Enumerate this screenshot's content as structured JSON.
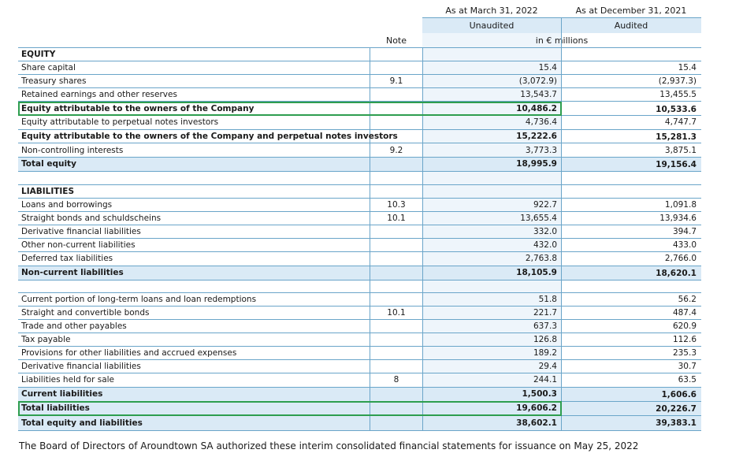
{
  "header": {
    "col1_date": "As at March 31, 2022",
    "col2_date": "As at December 31, 2021",
    "col1_status": "Unaudited",
    "col2_status": "Audited",
    "note_label": "Note",
    "unit": "in € millions"
  },
  "sections": {
    "equity": "EQUITY",
    "liabilities": "LIABILITIES"
  },
  "rows": {
    "share_capital": {
      "label": "Share capital",
      "note": "",
      "v1": "15.4",
      "v2": "15.4"
    },
    "treasury_shares": {
      "label": "Treasury shares",
      "note": "9.1",
      "v1": "(3,072.9)",
      "v2": "(2,937.3)"
    },
    "retained_earnings": {
      "label": "Retained earnings and other reserves",
      "note": "",
      "v1": "13,543.7",
      "v2": "13,455.5"
    },
    "equity_owners": {
      "label": "Equity attributable to the owners of the Company",
      "note": "",
      "v1": "10,486.2",
      "v2": "10,533.6"
    },
    "equity_perpetual": {
      "label": "Equity attributable to perpetual notes investors",
      "note": "",
      "v1": "4,736.4",
      "v2": "4,747.7"
    },
    "equity_owners_perpetual": {
      "label": "Equity attributable to the owners of the Company and perpetual notes investors",
      "note": "",
      "v1": "15,222.6",
      "v2": "15,281.3"
    },
    "non_controlling": {
      "label": "Non-controlling interests",
      "note": "9.2",
      "v1": "3,773.3",
      "v2": "3,875.1"
    },
    "total_equity": {
      "label": "Total equity",
      "note": "",
      "v1": "18,995.9",
      "v2": "19,156.4"
    },
    "loans_borrowings": {
      "label": "Loans and borrowings",
      "note": "10.3",
      "v1": "922.7",
      "v2": "1,091.8"
    },
    "straight_bonds": {
      "label": "Straight bonds and schuldscheins",
      "note": "10.1",
      "v1": "13,655.4",
      "v2": "13,934.6"
    },
    "derivative_nc": {
      "label": "Derivative financial liabilities",
      "note": "",
      "v1": "332.0",
      "v2": "394.7"
    },
    "other_nc": {
      "label": "Other non-current liabilities",
      "note": "",
      "v1": "432.0",
      "v2": "433.0"
    },
    "deferred_tax": {
      "label": "Deferred tax liabilities",
      "note": "",
      "v1": "2,763.8",
      "v2": "2,766.0"
    },
    "non_current_total": {
      "label": "Non-current liabilities",
      "note": "",
      "v1": "18,105.9",
      "v2": "18,620.1"
    },
    "current_portion": {
      "label": "Current portion of long-term loans and loan redemptions",
      "note": "",
      "v1": "51.8",
      "v2": "56.2"
    },
    "straight_convertible": {
      "label": "Straight and convertible bonds",
      "note": "10.1",
      "v1": "221.7",
      "v2": "487.4"
    },
    "trade_payables": {
      "label": "Trade and other payables",
      "note": "",
      "v1": "637.3",
      "v2": "620.9"
    },
    "tax_payable": {
      "label": "Tax payable",
      "note": "",
      "v1": "126.8",
      "v2": "112.6"
    },
    "provisions": {
      "label": "Provisions for other liabilities and accrued expenses",
      "note": "",
      "v1": "189.2",
      "v2": "235.3"
    },
    "derivative_c": {
      "label": "Derivative financial liabilities",
      "note": "",
      "v1": "29.4",
      "v2": "30.7"
    },
    "held_for_sale": {
      "label": "Liabilities held for sale",
      "note": "8",
      "v1": "244.1",
      "v2": "63.5"
    },
    "current_total": {
      "label": "Current liabilities",
      "note": "",
      "v1": "1,500.3",
      "v2": "1,606.6"
    },
    "total_liabilities": {
      "label": "Total liabilities",
      "note": "",
      "v1": "19,606.2",
      "v2": "20,226.7"
    },
    "total_equity_liabilities": {
      "label": "Total equity and liabilities",
      "note": "",
      "v1": "38,602.1",
      "v2": "39,383.1"
    }
  },
  "footer": "The Board of Directors of Aroundtown SA authorized these interim consolidated financial statements for issuance on May 25, 2022",
  "colors": {
    "rule": "#6aa5c9",
    "highlight_shade": "#daeaf6",
    "column_shade": "#eef5fb",
    "green_box": "#2e9e4f"
  }
}
